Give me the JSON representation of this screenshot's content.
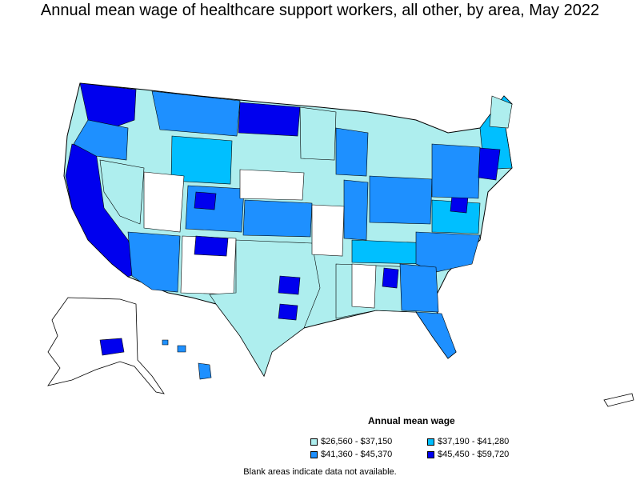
{
  "title": "Annual mean wage of healthcare support workers, all other, by area, May 2022",
  "legend": {
    "title": "Annual mean wage",
    "items": [
      {
        "label": "$26,560 - $37,150",
        "color": "#aeeeee"
      },
      {
        "label": "$37,190 - $41,280",
        "color": "#00bfff"
      },
      {
        "label": "$41,360 - $45,370",
        "color": "#1e90ff"
      },
      {
        "label": "$45,450 - $59,720",
        "color": "#0000ee"
      }
    ]
  },
  "note": "Blank areas indicate data not available.",
  "colors": {
    "no_data": "#ffffff",
    "border": "#000000"
  }
}
